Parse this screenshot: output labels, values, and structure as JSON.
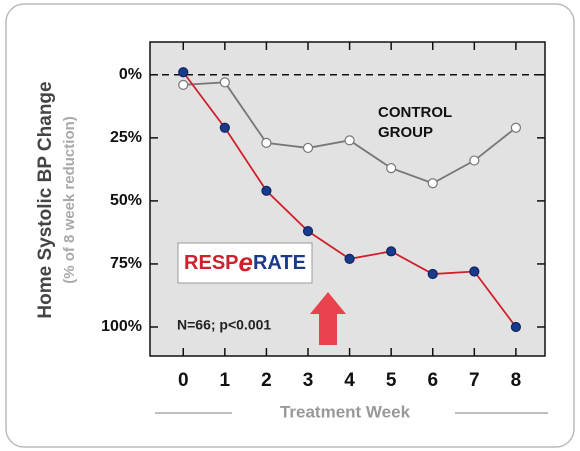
{
  "chart_data": {
    "type": "line",
    "y_axis_label": "Home Systolic BP Change",
    "y_axis_sublabel": "(% of 8 week reduction)",
    "x_axis_label": "Treatment Week",
    "x": [
      0,
      1,
      2,
      3,
      4,
      5,
      6,
      7,
      8
    ],
    "xlim": [
      -0.8,
      8.7
    ],
    "xticks": [
      0,
      1,
      2,
      3,
      4,
      5,
      6,
      7,
      8
    ],
    "ylim": [
      -13,
      111.5
    ],
    "y_inverted": true,
    "yticks": [
      {
        "value": 0,
        "label": "0%"
      },
      {
        "value": 25,
        "label": "25%"
      },
      {
        "value": 50,
        "label": "50%"
      },
      {
        "value": 75,
        "label": "75%"
      },
      {
        "value": 100,
        "label": "100%"
      }
    ],
    "reference_line": 0,
    "series": [
      {
        "color": "#d0202e",
        "marker_fill": "#1a3a8a",
        "values": [
          -1,
          21,
          46,
          62,
          73,
          70,
          79,
          78,
          100
        ]
      },
      {
        "color": "#777777",
        "marker_fill": "#ffffff",
        "values": [
          4,
          3,
          27,
          29,
          26,
          37,
          43,
          34,
          21
        ]
      }
    ],
    "annotations": [
      "CONTROL",
      "GROUP",
      "N=66; p<0.001"
    ],
    "logo": [
      "RESP",
      "e",
      "RATE"
    ]
  }
}
